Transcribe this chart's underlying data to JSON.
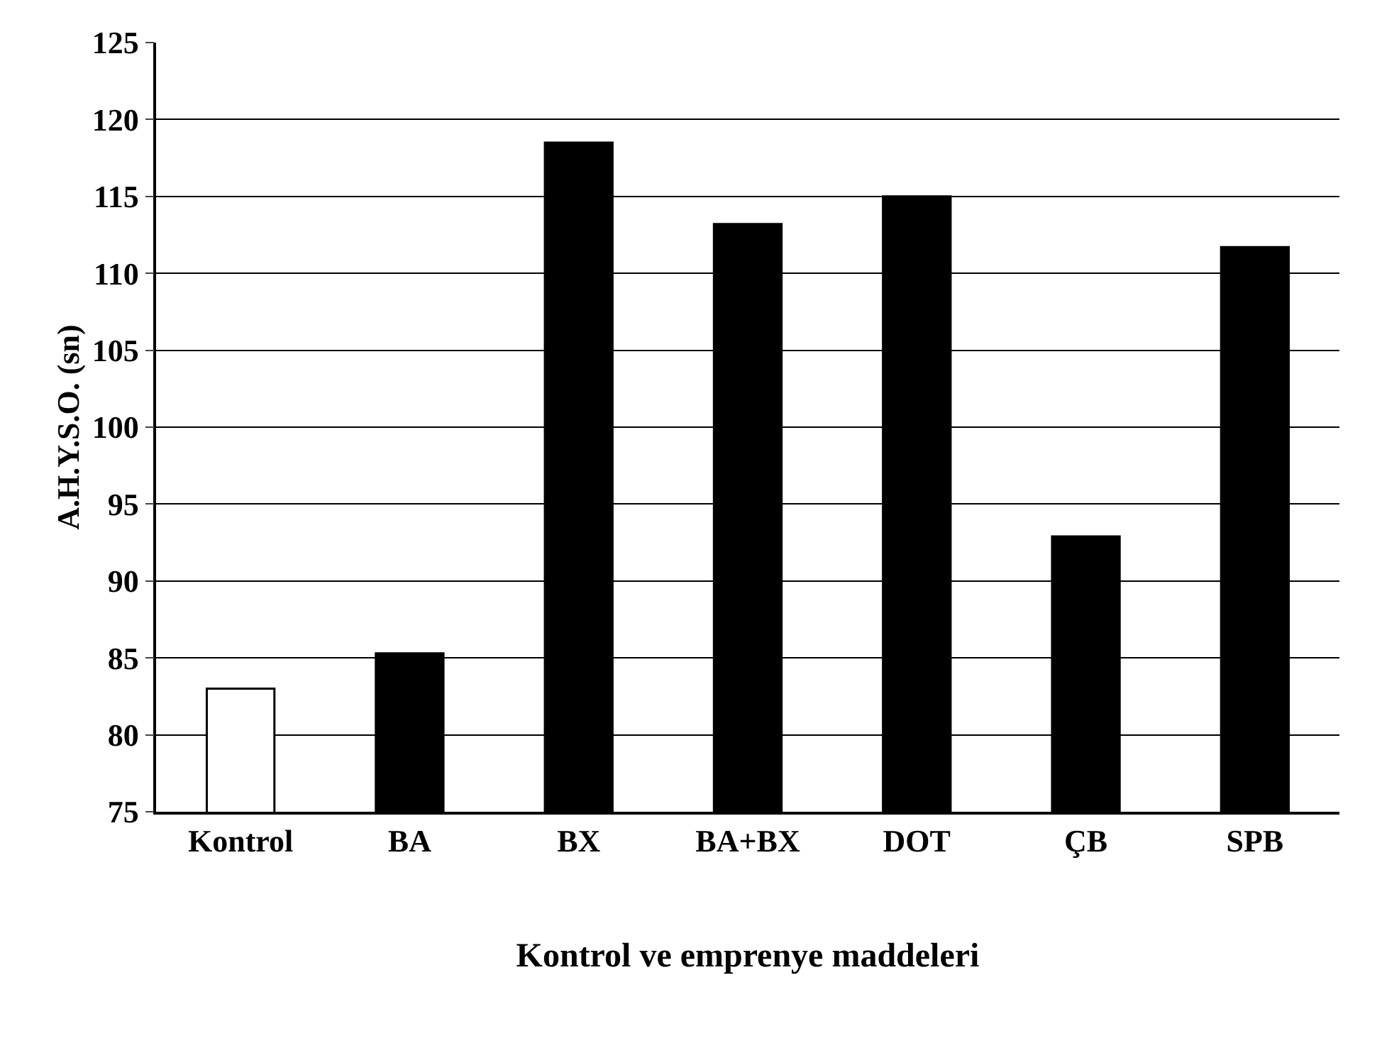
{
  "chart_data": {
    "type": "bar",
    "xlabel": "Kontrol ve emprenye maddeleri",
    "ylabel": "A.H.Y.S.O. (sn)",
    "categories": [
      "Kontrol",
      "BA",
      "BX",
      "BA+BX",
      "DOT",
      "ÇB",
      "SPB"
    ],
    "values": [
      83,
      85.3,
      118.5,
      113.2,
      115,
      92.9,
      111.7
    ],
    "colors": [
      "#ffffff",
      "#000000",
      "#000000",
      "#000000",
      "#000000",
      "#000000",
      "#000000"
    ],
    "ylim": [
      75,
      125
    ],
    "yticks": [
      75,
      80,
      85,
      90,
      95,
      100,
      105,
      110,
      115,
      120,
      125
    ],
    "grid": "y"
  }
}
